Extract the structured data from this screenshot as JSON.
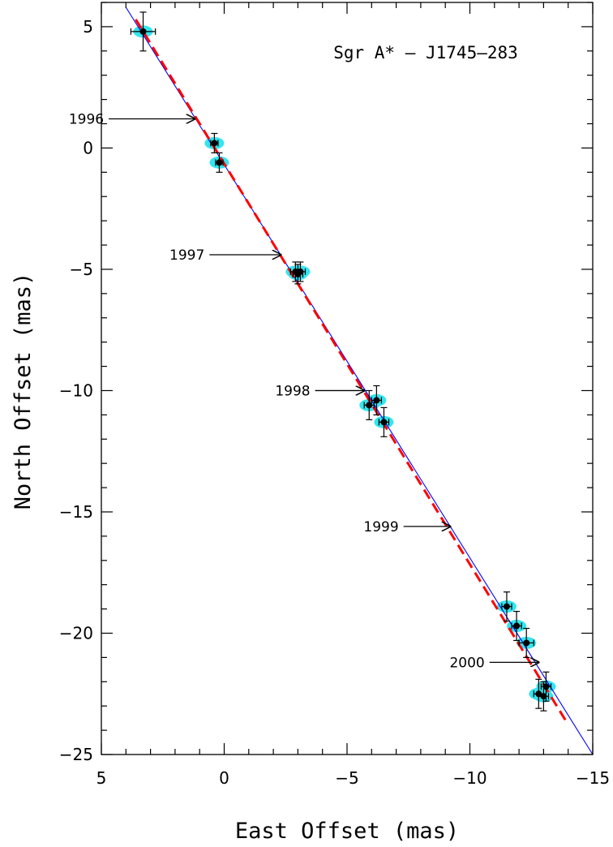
{
  "chart_data": {
    "type": "scatter",
    "title": "Sgr A* – J1745–283",
    "xlabel": "East Offset (mas)",
    "ylabel": "North Offset (mas)",
    "xlim": [
      5,
      -15
    ],
    "ylim": [
      -25,
      6
    ],
    "x_ticks": [
      5,
      0,
      -5,
      -10,
      -15
    ],
    "y_ticks": [
      5,
      0,
      -5,
      -10,
      -15,
      -20,
      -25
    ],
    "x_tick_labels": [
      "5",
      "0",
      "−5",
      "−10",
      "−15"
    ],
    "y_tick_labels": [
      "5",
      "0",
      "−5",
      "−10",
      "−15",
      "−20",
      "−25"
    ],
    "grid": false,
    "colors": {
      "points": "#000000",
      "ellipses": "#33e5ee",
      "fit_line": "#0000ff",
      "dashed_fit": "#ff0000"
    },
    "points": [
      {
        "x": 3.3,
        "y": 4.8,
        "xerr": 0.5,
        "yerr": 0.8
      },
      {
        "x": 0.4,
        "y": 0.2,
        "xerr": 0.15,
        "yerr": 0.4
      },
      {
        "x": 0.2,
        "y": -0.6,
        "xerr": 0.15,
        "yerr": 0.4
      },
      {
        "x": -2.9,
        "y": -5.1,
        "xerr": 0.2,
        "yerr": 0.4
      },
      {
        "x": -3.0,
        "y": -5.2,
        "xerr": 0.2,
        "yerr": 0.4
      },
      {
        "x": -3.1,
        "y": -5.1,
        "xerr": 0.2,
        "yerr": 0.4
      },
      {
        "x": -5.9,
        "y": -10.6,
        "xerr": 0.2,
        "yerr": 0.6
      },
      {
        "x": -6.2,
        "y": -10.4,
        "xerr": 0.2,
        "yerr": 0.6
      },
      {
        "x": -6.5,
        "y": -11.3,
        "xerr": 0.2,
        "yerr": 0.6
      },
      {
        "x": -11.5,
        "y": -18.9,
        "xerr": 0.2,
        "yerr": 0.6
      },
      {
        "x": -11.9,
        "y": -19.7,
        "xerr": 0.2,
        "yerr": 0.6
      },
      {
        "x": -12.3,
        "y": -20.4,
        "xerr": 0.3,
        "yerr": 0.6
      },
      {
        "x": -12.8,
        "y": -22.5,
        "xerr": 0.2,
        "yerr": 0.6
      },
      {
        "x": -13.0,
        "y": -22.6,
        "xerr": 0.2,
        "yerr": 0.6
      },
      {
        "x": -13.1,
        "y": -22.2,
        "xerr": 0.2,
        "yerr": 0.6
      }
    ],
    "fit_line": {
      "from": [
        4,
        5.8
      ],
      "to": [
        -15,
        -25
      ]
    },
    "dashed_fit": {
      "from": [
        3.6,
        5.3
      ],
      "to": [
        -13.9,
        -23.6
      ]
    },
    "annotations": [
      {
        "label": "1996",
        "tail": [
          4.7,
          1.2
        ],
        "head": [
          1.2,
          1.2
        ]
      },
      {
        "label": "1997",
        "tail": [
          0.6,
          -4.4
        ],
        "head": [
          -2.3,
          -4.4
        ]
      },
      {
        "label": "1998",
        "tail": [
          -3.7,
          -10.0
        ],
        "head": [
          -5.7,
          -10.0
        ]
      },
      {
        "label": "1999",
        "tail": [
          -7.3,
          -15.6
        ],
        "head": [
          -9.2,
          -15.6
        ]
      },
      {
        "label": "2000",
        "tail": [
          -10.8,
          -21.2
        ],
        "head": [
          -12.8,
          -21.2
        ]
      }
    ]
  }
}
